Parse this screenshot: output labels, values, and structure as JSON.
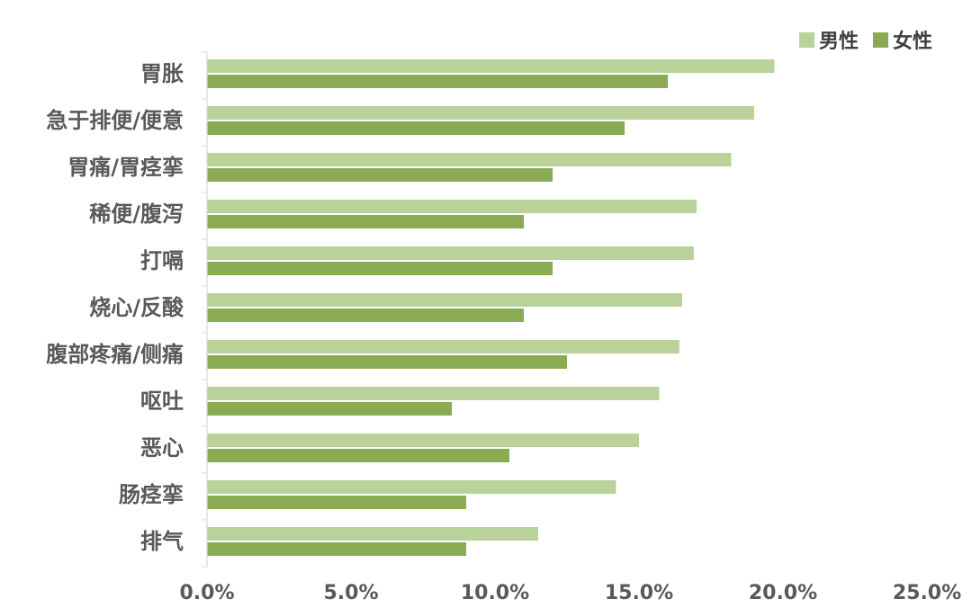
{
  "chart_data": {
    "type": "bar",
    "orientation": "horizontal",
    "categories": [
      "胃胀",
      "急于排便/便意",
      "胃痛/胃痉挛",
      "稀便/腹泻",
      "打嗝",
      "烧心/反酸",
      "腹部疼痛/侧痛",
      "呕吐",
      "恶心",
      "肠痉挛",
      "排气"
    ],
    "series": [
      {
        "name": "男性",
        "color": "#b8d29a",
        "values": [
          19.7,
          19.0,
          18.2,
          17.0,
          16.9,
          16.5,
          16.4,
          15.7,
          15.0,
          14.2,
          11.5
        ]
      },
      {
        "name": "女性",
        "color": "#8aab53",
        "values": [
          16.0,
          14.5,
          12.0,
          11.0,
          12.0,
          11.0,
          12.5,
          8.5,
          10.5,
          9.0,
          9.0
        ]
      }
    ],
    "xlim": [
      0,
      25
    ],
    "ticks": [
      "0.0%",
      "5.0%",
      "10.0%",
      "15.0%",
      "20.0%",
      "25.0%"
    ],
    "tick_values": [
      0,
      5,
      10,
      15,
      20,
      25
    ],
    "legend_position": "top-right",
    "title": "",
    "xlabel": "",
    "ylabel": ""
  }
}
